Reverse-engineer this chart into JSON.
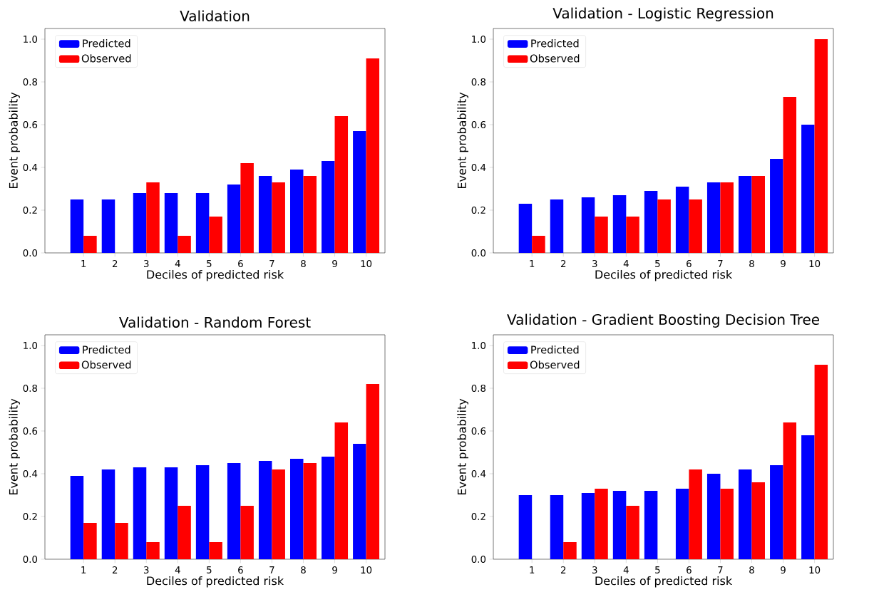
{
  "chart_data": [
    {
      "type": "bar",
      "title": "Validation",
      "xlabel": "Deciles of predicted risk",
      "ylabel": "Event probability",
      "categories": [
        "1",
        "2",
        "3",
        "4",
        "5",
        "6",
        "7",
        "8",
        "9",
        "10"
      ],
      "ylim": [
        0,
        1.05
      ],
      "yticks": [
        {
          "value": 0,
          "label": "0.0"
        },
        {
          "value": 0.2,
          "label": "0.2"
        },
        {
          "value": 0.4,
          "label": "0.4"
        },
        {
          "value": 0.6,
          "label": "0.6"
        },
        {
          "value": 0.8,
          "label": "0.8"
        },
        {
          "value": 1.0,
          "label": "1.0"
        }
      ],
      "legend": "top left",
      "series": [
        {
          "name": "Predicted",
          "color": "#0000ff",
          "values": [
            0.25,
            0.25,
            0.28,
            0.28,
            0.28,
            0.32,
            0.36,
            0.39,
            0.43,
            0.57
          ]
        },
        {
          "name": "Observed",
          "color": "#ff0000",
          "values": [
            0.08,
            0,
            0.33,
            0.08,
            0.17,
            0.42,
            0.33,
            0.36,
            0.64,
            0.91
          ]
        }
      ]
    },
    {
      "type": "bar",
      "title": "Validation - Logistic Regression",
      "xlabel": "Deciles of predicted risk",
      "ylabel": "Event probability",
      "categories": [
        "1",
        "2",
        "3",
        "4",
        "5",
        "6",
        "7",
        "8",
        "9",
        "10"
      ],
      "ylim": [
        0,
        1.05
      ],
      "yticks": [
        {
          "value": 0,
          "label": "0.0"
        },
        {
          "value": 0.2,
          "label": "0.2"
        },
        {
          "value": 0.4,
          "label": "0.4"
        },
        {
          "value": 0.6,
          "label": "0.6"
        },
        {
          "value": 0.8,
          "label": "0.8"
        },
        {
          "value": 1.0,
          "label": "1.0"
        }
      ],
      "legend": "top left",
      "series": [
        {
          "name": "Predicted",
          "color": "#0000ff",
          "values": [
            0.23,
            0.25,
            0.26,
            0.27,
            0.29,
            0.31,
            0.33,
            0.36,
            0.44,
            0.6
          ]
        },
        {
          "name": "Observed",
          "color": "#ff0000",
          "values": [
            0.08,
            0,
            0.17,
            0.17,
            0.25,
            0.25,
            0.33,
            0.36,
            0.73,
            1.0
          ]
        }
      ]
    },
    {
      "type": "bar",
      "title": "Validation - Random Forest",
      "xlabel": "Deciles of predicted risk",
      "ylabel": "Event probability",
      "categories": [
        "1",
        "2",
        "3",
        "4",
        "5",
        "6",
        "7",
        "8",
        "9",
        "10"
      ],
      "ylim": [
        0,
        1.05
      ],
      "yticks": [
        {
          "value": 0,
          "label": "0.0"
        },
        {
          "value": 0.2,
          "label": "0.2"
        },
        {
          "value": 0.4,
          "label": "0.4"
        },
        {
          "value": 0.6,
          "label": "0.6"
        },
        {
          "value": 0.8,
          "label": "0.8"
        },
        {
          "value": 1.0,
          "label": "1.0"
        }
      ],
      "legend": "top left",
      "series": [
        {
          "name": "Predicted",
          "color": "#0000ff",
          "values": [
            0.39,
            0.42,
            0.43,
            0.43,
            0.44,
            0.45,
            0.46,
            0.47,
            0.48,
            0.54
          ]
        },
        {
          "name": "Observed",
          "color": "#ff0000",
          "values": [
            0.17,
            0.17,
            0.08,
            0.25,
            0.08,
            0.25,
            0.42,
            0.45,
            0.64,
            0.82
          ]
        }
      ]
    },
    {
      "type": "bar",
      "title": "Validation - Gradient Boosting Decision Tree",
      "xlabel": "Deciles of predicted risk",
      "ylabel": "Event probability",
      "categories": [
        "1",
        "2",
        "3",
        "4",
        "5",
        "6",
        "7",
        "8",
        "9",
        "10"
      ],
      "ylim": [
        0,
        1.05
      ],
      "yticks": [
        {
          "value": 0,
          "label": "0.0"
        },
        {
          "value": 0.2,
          "label": "0.2"
        },
        {
          "value": 0.4,
          "label": "0.4"
        },
        {
          "value": 0.6,
          "label": "0.6"
        },
        {
          "value": 0.8,
          "label": "0.8"
        },
        {
          "value": 1.0,
          "label": "1.0"
        }
      ],
      "legend": "top left",
      "series": [
        {
          "name": "Predicted",
          "color": "#0000ff",
          "values": [
            0.3,
            0.3,
            0.31,
            0.32,
            0.32,
            0.33,
            0.4,
            0.42,
            0.44,
            0.58
          ]
        },
        {
          "name": "Observed",
          "color": "#ff0000",
          "values": [
            0,
            0.08,
            0.33,
            0.25,
            0,
            0.42,
            0.33,
            0.36,
            0.64,
            0.91
          ]
        }
      ]
    }
  ]
}
